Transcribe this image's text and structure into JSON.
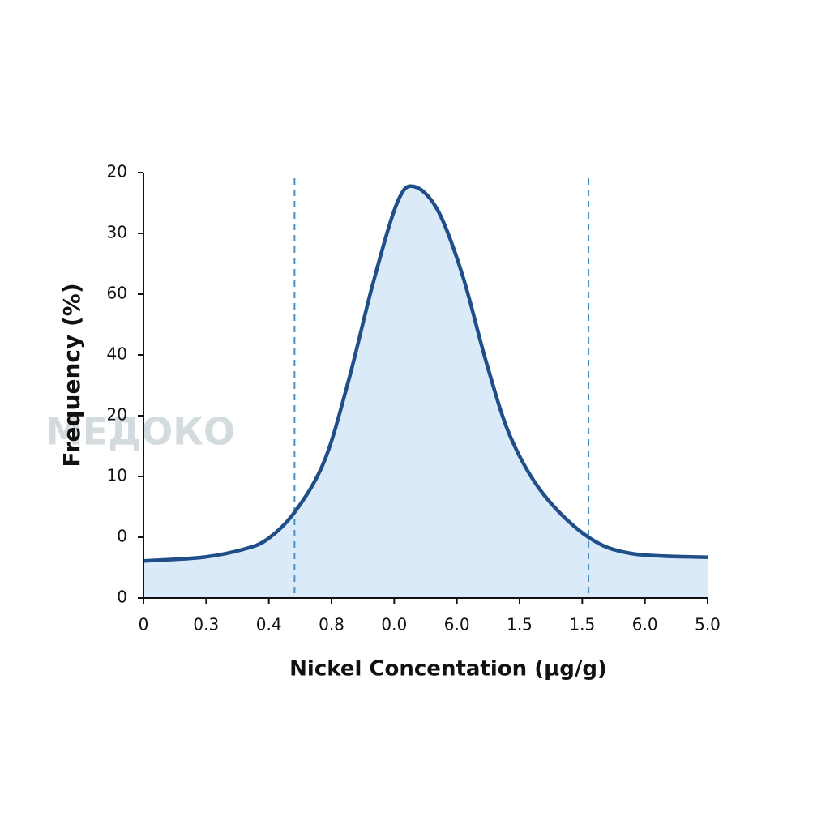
{
  "chart_data": {
    "type": "area",
    "x_label": "Nickel Concentation (µg/g)",
    "y_label": "Frequency (%)",
    "watermark": "МЕДОКО",
    "xlim": [
      0,
      9
    ],
    "ylim": [
      0,
      7
    ],
    "xticks": [
      {
        "value": 0,
        "label": "0"
      },
      {
        "value": 1,
        "label": "0.3"
      },
      {
        "value": 2,
        "label": "0.4"
      },
      {
        "value": 3,
        "label": "0.8"
      },
      {
        "value": 4,
        "label": "0.0"
      },
      {
        "value": 5,
        "label": "6.0"
      },
      {
        "value": 6,
        "label": "1.5"
      },
      {
        "value": 7,
        "label": "1.5"
      },
      {
        "value": 8,
        "label": "6.0"
      },
      {
        "value": 9,
        "label": "5.0"
      }
    ],
    "yticks": [
      {
        "value": 0,
        "label": "0"
      },
      {
        "value": 1,
        "label": "0"
      },
      {
        "value": 2,
        "label": "10"
      },
      {
        "value": 3,
        "label": "20"
      },
      {
        "value": 4,
        "label": "40"
      },
      {
        "value": 5,
        "label": "60"
      },
      {
        "value": 6,
        "label": "30"
      },
      {
        "value": 7,
        "label": "20"
      }
    ],
    "x": [
      0,
      0.94,
      1.59,
      1.98,
      2.41,
      2.88,
      3.27,
      3.66,
      4.05,
      4.32,
      4.7,
      5.09,
      5.48,
      5.86,
      6.38,
      7.1,
      7.8,
      9
    ],
    "values": [
      0.61,
      0.67,
      0.8,
      0.97,
      1.41,
      2.24,
      3.57,
      5.17,
      6.51,
      6.77,
      6.37,
      5.31,
      3.84,
      2.64,
      1.71,
      1.0,
      0.73,
      0.67
    ],
    "color": "#1f4e89",
    "fill": "#dbeaf8",
    "vlines": [
      2.41,
      7.1
    ],
    "vline_color": "#4a90c8"
  }
}
